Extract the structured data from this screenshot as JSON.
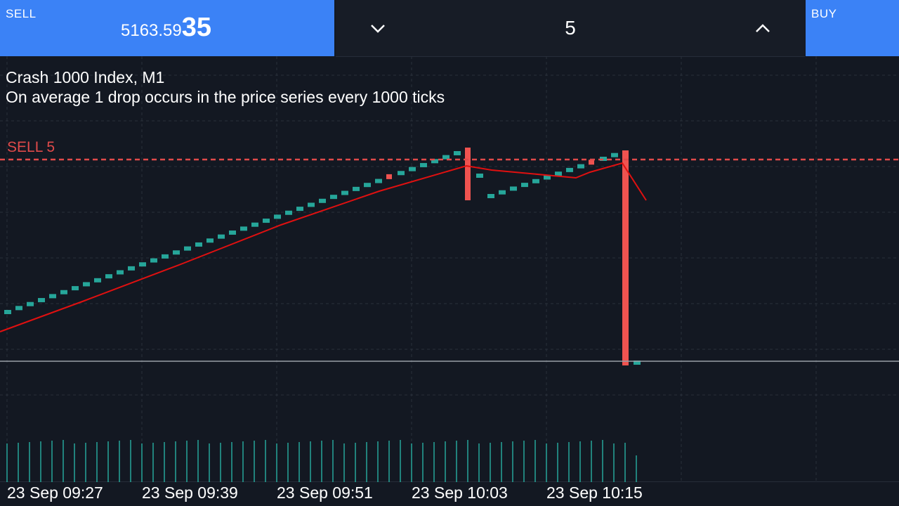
{
  "toolbar": {
    "sell_label": "SELL",
    "sell_price_main": "5163.59",
    "sell_price_big": "35",
    "lot_value": "5",
    "buy_label": "BUY",
    "down_icon": "chevron-down-icon",
    "up_icon": "chevron-up-icon"
  },
  "info": {
    "symbol": "Crash 1000 Index, M1",
    "description": "On average 1 drop occurs in the price series every 1000 ticks"
  },
  "position": {
    "label": "SELL 5",
    "color": "#e04a4a"
  },
  "colors": {
    "bull": "#26a69a",
    "bear": "#ef5350",
    "ma": "#e01010",
    "accent": "#3b82f6"
  },
  "chart_data": {
    "type": "candlestick",
    "x_tick_labels": [
      "23 Sep 09:27",
      "23 Sep 09:39",
      "23 Sep 09:51",
      "23 Sep 10:03",
      "23 Sep 10:15"
    ],
    "candles": [
      {
        "dir": "up"
      },
      {
        "dir": "up"
      },
      {
        "dir": "up"
      },
      {
        "dir": "up"
      },
      {
        "dir": "up"
      },
      {
        "dir": "up"
      },
      {
        "dir": "up"
      },
      {
        "dir": "up"
      },
      {
        "dir": "up"
      },
      {
        "dir": "up"
      },
      {
        "dir": "up"
      },
      {
        "dir": "up"
      },
      {
        "dir": "up"
      },
      {
        "dir": "up"
      },
      {
        "dir": "up"
      },
      {
        "dir": "up"
      },
      {
        "dir": "up"
      },
      {
        "dir": "up"
      },
      {
        "dir": "up"
      },
      {
        "dir": "up"
      },
      {
        "dir": "up"
      },
      {
        "dir": "up"
      },
      {
        "dir": "up"
      },
      {
        "dir": "up"
      },
      {
        "dir": "up"
      },
      {
        "dir": "up"
      },
      {
        "dir": "up"
      },
      {
        "dir": "up"
      },
      {
        "dir": "up"
      },
      {
        "dir": "up"
      },
      {
        "dir": "up"
      },
      {
        "dir": "up"
      },
      {
        "dir": "up"
      },
      {
        "dir": "up"
      },
      {
        "dir": "down"
      },
      {
        "dir": "up"
      },
      {
        "dir": "up"
      },
      {
        "dir": "up"
      },
      {
        "dir": "up"
      },
      {
        "dir": "up"
      },
      {
        "dir": "up"
      },
      {
        "dir": "down"
      },
      {
        "dir": "up"
      },
      {
        "dir": "up"
      },
      {
        "dir": "up"
      },
      {
        "dir": "up"
      },
      {
        "dir": "up"
      },
      {
        "dir": "up"
      },
      {
        "dir": "up"
      },
      {
        "dir": "up"
      },
      {
        "dir": "up"
      },
      {
        "dir": "up"
      },
      {
        "dir": "down"
      },
      {
        "dir": "up"
      },
      {
        "dir": "up"
      },
      {
        "dir": "down"
      },
      {
        "dir": "up"
      }
    ]
  }
}
